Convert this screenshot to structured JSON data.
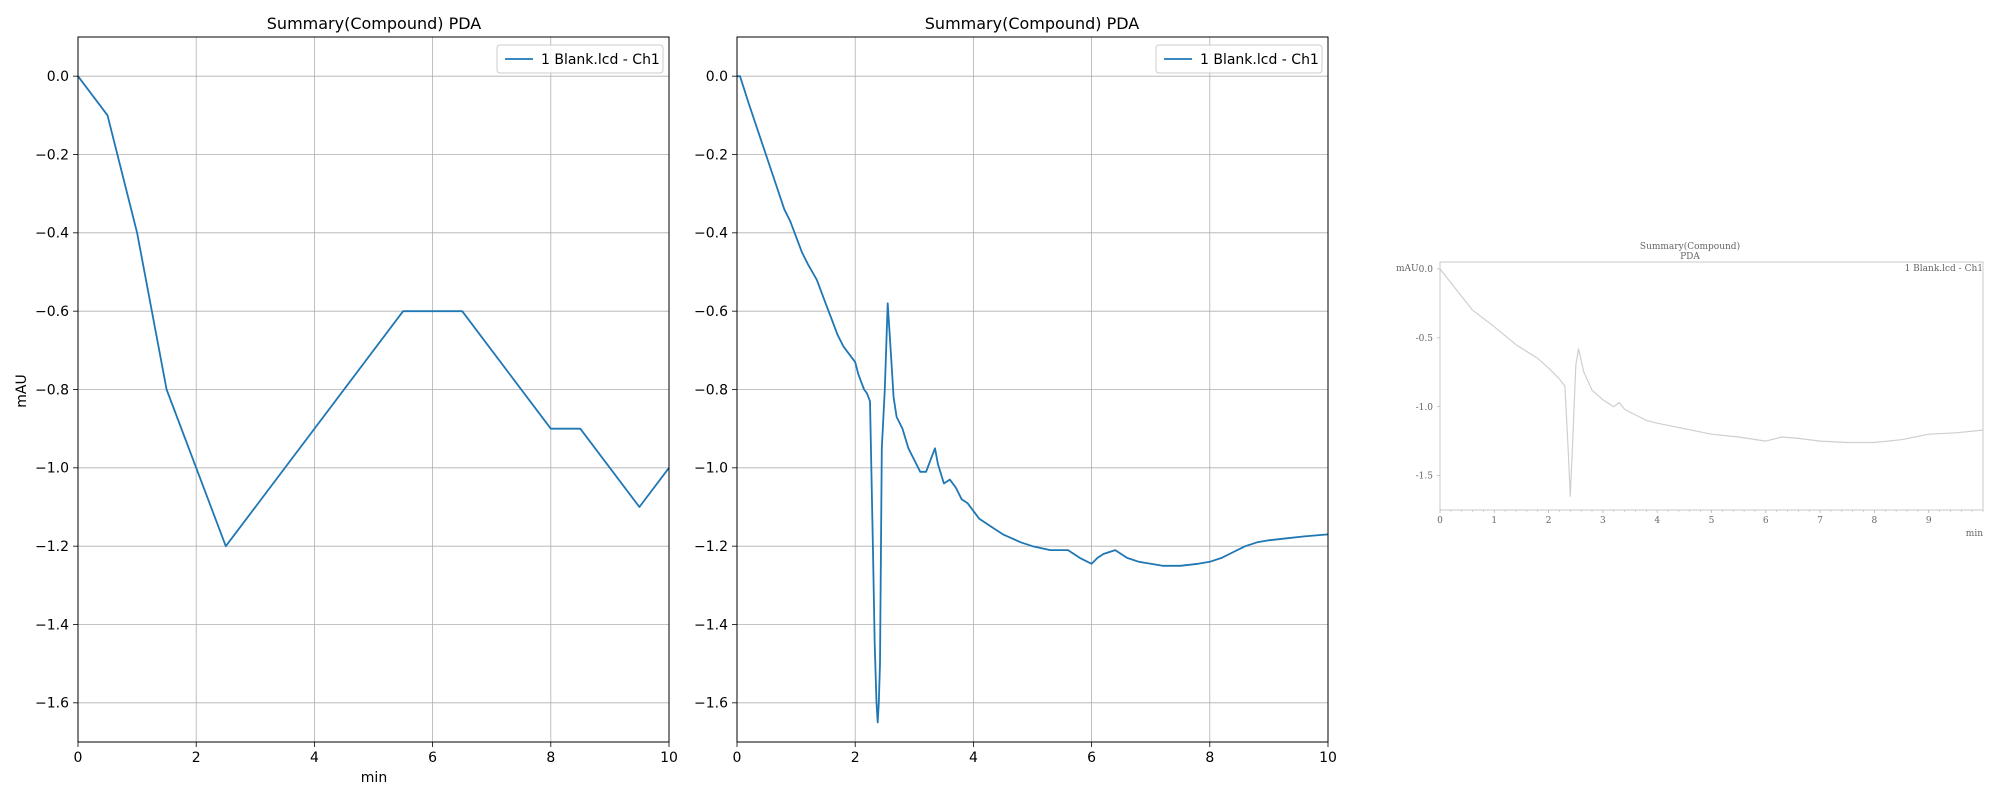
{
  "chart_data": [
    {
      "type": "line",
      "title": "Summary(Compound) PDA",
      "xlabel": "min",
      "ylabel": "mAU",
      "xlim": [
        0,
        10
      ],
      "ylim": [
        -1.7,
        0.1
      ],
      "xticks": [
        0,
        2,
        4,
        6,
        8,
        10
      ],
      "xtick_labels": [
        "0",
        "2",
        "4",
        "6",
        "8",
        "10"
      ],
      "yticks": [
        0.0,
        -0.2,
        -0.4,
        -0.6,
        -0.8,
        -1.0,
        -1.2,
        -1.4,
        -1.6
      ],
      "ytick_labels": [
        "0.0",
        "−0.2",
        "−0.4",
        "−0.6",
        "−0.8",
        "−1.0",
        "−1.2",
        "−1.4",
        "−1.6"
      ],
      "grid": true,
      "legend": "top-right",
      "series": [
        {
          "name": "1 Blank.lcd - Ch1",
          "color": "#1f77b4",
          "x": [
            0,
            0.5,
            1.0,
            1.5,
            2.0,
            2.5,
            5.5,
            6.0,
            6.5,
            8.0,
            8.5,
            9.5,
            10.0
          ],
          "y": [
            0.0,
            -0.1,
            -0.4,
            -0.8,
            -1.0,
            -1.2,
            -0.6,
            -0.6,
            -0.6,
            -0.9,
            -0.9,
            -1.1,
            -1.0
          ]
        }
      ]
    },
    {
      "type": "line",
      "title": "Summary(Compound) PDA",
      "xlabel": "",
      "ylabel": "",
      "xlim": [
        0,
        10
      ],
      "ylim": [
        -1.7,
        0.1
      ],
      "xticks": [
        0,
        2,
        4,
        6,
        8,
        10
      ],
      "xtick_labels": [
        "0",
        "2",
        "4",
        "6",
        "8",
        "10"
      ],
      "yticks": [
        0.0,
        -0.2,
        -0.4,
        -0.6,
        -0.8,
        -1.0,
        -1.2,
        -1.4,
        -1.6
      ],
      "ytick_labels": [
        "0.0",
        "−0.2",
        "−0.4",
        "−0.6",
        "−0.8",
        "−1.0",
        "−1.2",
        "−1.4",
        "−1.6"
      ],
      "grid": true,
      "legend": "top-right",
      "series": [
        {
          "name": "1 Blank.lcd - Ch1",
          "color": "#1f77b4",
          "x": [
            0,
            0.05,
            0.2,
            0.4,
            0.6,
            0.8,
            0.9,
            1.0,
            1.1,
            1.2,
            1.35,
            1.5,
            1.6,
            1.7,
            1.8,
            1.9,
            2.0,
            2.05,
            2.1,
            2.15,
            2.2,
            2.25,
            2.3,
            2.33,
            2.36,
            2.38,
            2.4,
            2.42,
            2.45,
            2.5,
            2.55,
            2.6,
            2.65,
            2.7,
            2.8,
            2.9,
            3.0,
            3.1,
            3.2,
            3.3,
            3.35,
            3.4,
            3.5,
            3.6,
            3.7,
            3.8,
            3.9,
            4.0,
            4.1,
            4.3,
            4.5,
            4.8,
            5.0,
            5.3,
            5.6,
            5.8,
            6.0,
            6.1,
            6.2,
            6.4,
            6.6,
            6.8,
            7.0,
            7.2,
            7.5,
            7.8,
            8.0,
            8.2,
            8.4,
            8.6,
            8.8,
            9.0,
            9.3,
            9.6,
            10.0
          ],
          "y": [
            0.0,
            0.0,
            -0.07,
            -0.16,
            -0.25,
            -0.34,
            -0.37,
            -0.41,
            -0.45,
            -0.48,
            -0.52,
            -0.58,
            -0.62,
            -0.66,
            -0.69,
            -0.71,
            -0.73,
            -0.76,
            -0.78,
            -0.8,
            -0.81,
            -0.83,
            -1.2,
            -1.45,
            -1.6,
            -1.65,
            -1.6,
            -1.5,
            -0.95,
            -0.8,
            -0.58,
            -0.7,
            -0.82,
            -0.87,
            -0.9,
            -0.95,
            -0.98,
            -1.01,
            -1.01,
            -0.97,
            -0.95,
            -0.99,
            -1.04,
            -1.03,
            -1.05,
            -1.08,
            -1.09,
            -1.11,
            -1.13,
            -1.15,
            -1.17,
            -1.19,
            -1.2,
            -1.21,
            -1.21,
            -1.23,
            -1.245,
            -1.23,
            -1.22,
            -1.21,
            -1.23,
            -1.24,
            -1.245,
            -1.25,
            -1.25,
            -1.245,
            -1.24,
            -1.23,
            -1.215,
            -1.2,
            -1.19,
            -1.185,
            -1.18,
            -1.175,
            -1.17
          ]
        }
      ]
    },
    {
      "type": "line",
      "title": "Summary(Compound)",
      "subtitle": "PDA",
      "xlabel": "min",
      "ylabel": "mAU",
      "xlim": [
        0,
        10
      ],
      "ylim": [
        -1.75,
        0.05
      ],
      "xticks": [
        0,
        1,
        2,
        3,
        4,
        5,
        6,
        7,
        8,
        9
      ],
      "xtick_labels": [
        "0",
        "1",
        "2",
        "3",
        "4",
        "5",
        "6",
        "7",
        "8",
        "9"
      ],
      "yticks": [
        0.0,
        -0.5,
        -1.0,
        -1.5
      ],
      "ytick_labels": [
        "0.0",
        "-0.5",
        "-1.0",
        "-1.5"
      ],
      "grid": false,
      "legend": "top-right",
      "series": [
        {
          "name": "1 Blank.lcd - Ch1",
          "color": "#cfcfcf",
          "x": [
            0,
            0.3,
            0.6,
            1.0,
            1.4,
            1.8,
            2.0,
            2.2,
            2.3,
            2.36,
            2.4,
            2.45,
            2.5,
            2.55,
            2.65,
            2.8,
            3.0,
            3.2,
            3.3,
            3.4,
            3.6,
            3.8,
            4.0,
            4.5,
            5.0,
            5.5,
            6.0,
            6.3,
            6.6,
            7.0,
            7.5,
            8.0,
            8.5,
            9.0,
            9.5,
            10.0
          ],
          "y": [
            0.0,
            -0.15,
            -0.3,
            -0.42,
            -0.55,
            -0.65,
            -0.72,
            -0.8,
            -0.85,
            -1.3,
            -1.65,
            -1.2,
            -0.7,
            -0.58,
            -0.75,
            -0.88,
            -0.95,
            -1.0,
            -0.97,
            -1.02,
            -1.06,
            -1.1,
            -1.12,
            -1.16,
            -1.2,
            -1.22,
            -1.25,
            -1.22,
            -1.23,
            -1.25,
            -1.26,
            -1.26,
            -1.24,
            -1.2,
            -1.19,
            -1.17
          ]
        }
      ]
    }
  ]
}
